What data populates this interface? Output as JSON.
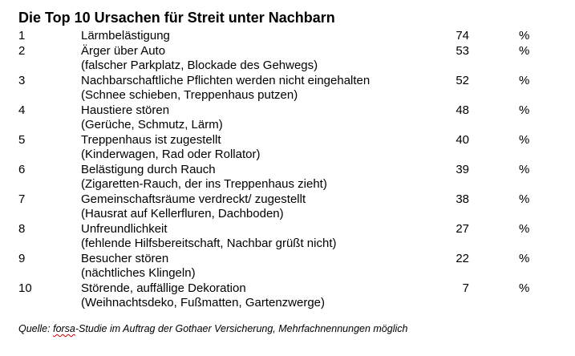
{
  "title": "Die Top 10 Ursachen für Streit unter Nachbarn",
  "unit_symbol": "%",
  "rows": [
    {
      "rank": "1",
      "label": "Lärmbelästigung",
      "detail": "",
      "value": "74"
    },
    {
      "rank": "2",
      "label": "Ärger über Auto",
      "detail": "(falscher Parkplatz, Blockade des Gehwegs)",
      "value": "53"
    },
    {
      "rank": "3",
      "label": "Nachbarschaftliche Pflichten werden nicht eingehalten",
      "detail": "(Schnee schieben, Treppenhaus putzen)",
      "value": "52"
    },
    {
      "rank": "4",
      "label": "Haustiere stören",
      "detail": "(Gerüche, Schmutz, Lärm)",
      "value": "48"
    },
    {
      "rank": "5",
      "label": "Treppenhaus ist zugestellt",
      "detail": "(Kinderwagen, Rad oder Rollator)",
      "value": "40"
    },
    {
      "rank": "6",
      "label": "Belästigung durch Rauch",
      "detail": "(Zigaretten-Rauch, der ins Treppenhaus zieht)",
      "value": "39"
    },
    {
      "rank": "7",
      "label": "Gemeinschaftsräume verdreckt/ zugestellt",
      "detail": "(Hausrat auf Kellerfluren, Dachboden)",
      "value": "38"
    },
    {
      "rank": "8",
      "label": "Unfreundlichkeit",
      "detail": "(fehlende Hilfsbereitschaft, Nachbar grüßt nicht)",
      "value": "27"
    },
    {
      "rank": "9",
      "label": "Besucher stören",
      "detail": "(nächtliches Klingeln)",
      "value": "22"
    },
    {
      "rank": "10",
      "label": "Störende, auffällige Dekoration",
      "detail": "(Weihnachtsdeko, Fußmatten, Gartenzwerge)",
      "value": "7"
    }
  ],
  "source": {
    "prefix": "Quelle: ",
    "brand": "forsa",
    "rest": "-Studie im Auftrag der Gothaer Versicherung, Mehrfachnennungen möglich"
  }
}
